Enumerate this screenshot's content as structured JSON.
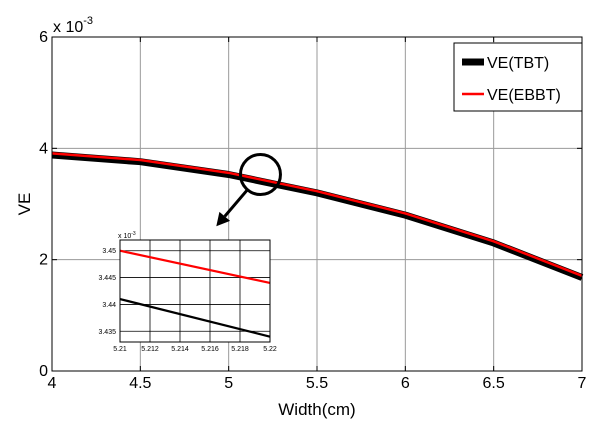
{
  "chart_data": [
    {
      "type": "line",
      "xlabel": "Width(cm)",
      "ylabel": "VE",
      "y_exponent": "x 10",
      "y_exponent_power": "-3",
      "xlim": [
        4,
        7
      ],
      "ylim": [
        0,
        0.006
      ],
      "x_ticks": [
        4,
        4.5,
        5,
        5.5,
        6,
        6.5,
        7
      ],
      "x_tick_labels": [
        "4",
        "4.5",
        "5",
        "5.5",
        "6",
        "6.5",
        "7"
      ],
      "y_ticks": [
        0,
        0.002,
        0.004,
        0.006
      ],
      "y_tick_labels": [
        "0",
        "2",
        "4",
        "6"
      ],
      "grid": true,
      "legend_position": "top-right",
      "series": [
        {
          "name": "VE(TBT)",
          "color": "#000000",
          "x": [
            4.0,
            4.5,
            5.0,
            5.5,
            6.0,
            6.5,
            7.0
          ],
          "values": [
            0.00388,
            0.00376,
            0.00353,
            0.0032,
            0.0028,
            0.0023,
            0.00168
          ]
        },
        {
          "name": "VE(EBBT)",
          "color": "#ff0000",
          "x": [
            4.0,
            4.5,
            5.0,
            5.5,
            6.0,
            6.5,
            7.0
          ],
          "values": [
            0.00391,
            0.00379,
            0.00356,
            0.00323,
            0.00283,
            0.00233,
            0.00171
          ]
        }
      ],
      "annotation": {
        "circle_center": [
          5.18,
          0.00353
        ],
        "arrow_target": [
          4.93,
          0.0026
        ]
      }
    },
    {
      "type": "line",
      "y_exponent": "x 10",
      "y_exponent_power": "-3",
      "xlim": [
        5.21,
        5.22
      ],
      "ylim": [
        0.003433,
        0.003452
      ],
      "x_ticks": [
        5.21,
        5.212,
        5.214,
        5.216,
        5.218,
        5.22
      ],
      "x_tick_labels": [
        "5.21",
        "5.212",
        "5.214",
        "5.216",
        "5.218",
        "5.22"
      ],
      "y_ticks": [
        0.003435,
        0.00344,
        0.003445,
        0.00345
      ],
      "y_tick_labels": [
        "3.435",
        "3.44",
        "3.445",
        "3.45"
      ],
      "grid": true,
      "series": [
        {
          "name": "VE(TBT)",
          "color": "#000000",
          "x": [
            5.21,
            5.22
          ],
          "values": [
            0.003441,
            0.003434
          ]
        },
        {
          "name": "VE(EBBT)",
          "color": "#ff0000",
          "x": [
            5.21,
            5.22
          ],
          "values": [
            0.00345,
            0.003444
          ]
        }
      ]
    }
  ]
}
